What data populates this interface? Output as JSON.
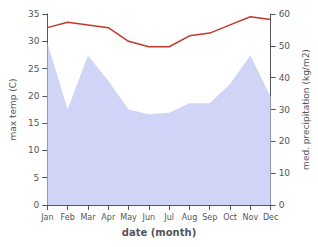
{
  "chart_data": {
    "type": "line",
    "xlabel": "date (month)",
    "ylabel": "max temp (C)",
    "y2label": "med. precipitation (kg/m2)",
    "categories": [
      "Jan",
      "Feb",
      "Mar",
      "Apr",
      "May",
      "Jun",
      "Jul",
      "Aug",
      "Sep",
      "Oct",
      "Nov",
      "Dec"
    ],
    "series": [
      {
        "type": "area",
        "axis": "y2",
        "color": "#c8cdf5",
        "values": [
          51.0,
          30.0,
          47.0,
          39.0,
          30.0,
          28.5,
          29.0,
          32.0,
          32.0,
          38.0,
          47.0,
          34.0
        ]
      },
      {
        "type": "line",
        "color": "#c0392b",
        "values": [
          32.5,
          33.5,
          33.0,
          32.5,
          30.0,
          29.0,
          29.0,
          31.0,
          31.5,
          33.0,
          34.5,
          34.0
        ]
      }
    ],
    "ylim": [
      0,
      35
    ],
    "yticks": [
      0,
      5,
      10,
      15,
      20,
      25,
      30,
      35
    ],
    "y2lim": [
      0,
      60
    ],
    "y2ticks": [
      0,
      10,
      20,
      30,
      40,
      50,
      60
    ],
    "grid": false
  }
}
